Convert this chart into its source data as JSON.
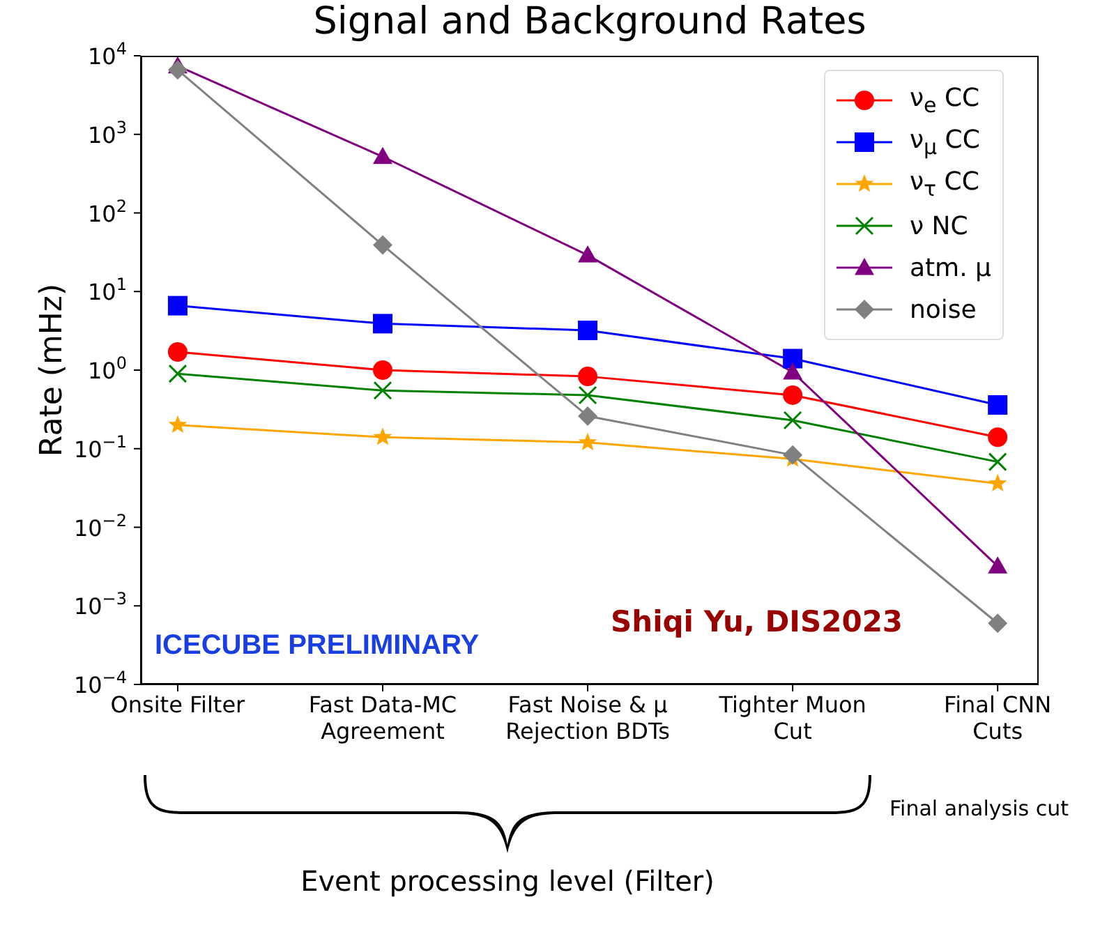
{
  "chart_data": {
    "type": "line",
    "title": "Signal and Background Rates",
    "ylabel": "Rate (mHz)",
    "categories": [
      "Onsite Filter",
      "Fast Data-MC\nAgreement",
      "Fast Noise & μ\nRejection BDTs",
      "Tighter Muon\nCut",
      "Final CNN\nCuts"
    ],
    "series": [
      {
        "name": "ν$_{e}$ CC",
        "color": "#ff0000",
        "marker": "circle",
        "values": [
          1.7,
          1.0,
          0.83,
          0.48,
          0.14
        ]
      },
      {
        "name": "ν$_{μ}$ CC",
        "color": "#0000ff",
        "marker": "square",
        "values": [
          6.6,
          3.9,
          3.2,
          1.4,
          0.36
        ]
      },
      {
        "name": "ν$_{τ}$ CC",
        "color": "#ffa500",
        "marker": "star",
        "values": [
          0.2,
          0.14,
          0.12,
          0.074,
          0.036
        ]
      },
      {
        "name": "ν NC",
        "color": "#008000",
        "marker": "cross",
        "values": [
          0.9,
          0.55,
          0.48,
          0.23,
          0.068
        ]
      },
      {
        "name": "atm. μ",
        "color": "#800080",
        "marker": "triangle",
        "values": [
          7400,
          520,
          29,
          0.94,
          0.0032
        ]
      },
      {
        "name": "noise",
        "color": "#808080",
        "marker": "diamond",
        "values": [
          6600,
          39,
          0.26,
          0.083,
          0.0006
        ]
      }
    ],
    "log": "y",
    "ylim": [
      0.0001,
      10000
    ],
    "yticks": [
      {
        "value": 0.0001,
        "label": "10$^{−4}$"
      },
      {
        "value": 0.001,
        "label": "10$^{−3}$"
      },
      {
        "value": 0.01,
        "label": "10$^{−2}$"
      },
      {
        "value": 0.1,
        "label": "10$^{−1}$"
      },
      {
        "value": 1,
        "label": "10$^{0}$"
      },
      {
        "value": 10,
        "label": "10$^{1}$"
      },
      {
        "value": 100,
        "label": "10$^{2}$"
      },
      {
        "value": 1000,
        "label": "10$^{3}$"
      },
      {
        "value": 10000,
        "label": "10$^{4}$"
      }
    ],
    "grid": false,
    "legend": "top right",
    "line_style": "solid",
    "annotations": [
      "ICECUBE PRELIMINARY",
      "Shiqi Yu, DIS2023",
      "Final analysis cut",
      "Event processing level (Filter)"
    ]
  }
}
